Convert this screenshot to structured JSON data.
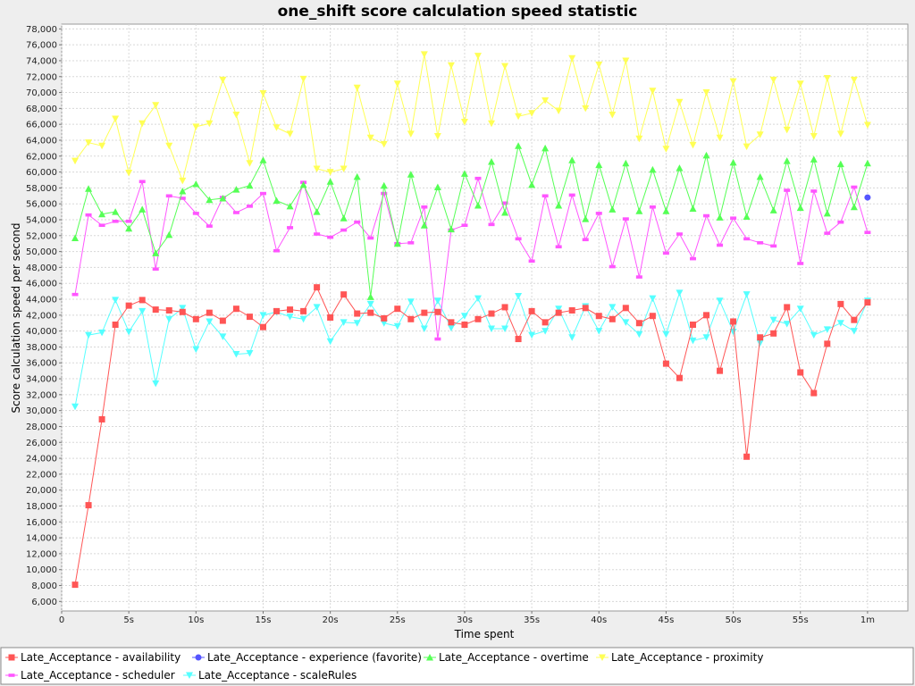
{
  "chart_data": {
    "type": "line",
    "title": "one_shift score calculation speed statistic",
    "xlabel": "Time spent",
    "ylabel": "Score calculation speed per second",
    "xlim": [
      0,
      63
    ],
    "ylim": [
      4800,
      78600
    ],
    "x_ticks": [
      {
        "value": 0,
        "label": "0"
      },
      {
        "value": 5,
        "label": "5s"
      },
      {
        "value": 10,
        "label": "10s"
      },
      {
        "value": 15,
        "label": "15s"
      },
      {
        "value": 20,
        "label": "20s"
      },
      {
        "value": 25,
        "label": "25s"
      },
      {
        "value": 30,
        "label": "30s"
      },
      {
        "value": 35,
        "label": "35s"
      },
      {
        "value": 40,
        "label": "40s"
      },
      {
        "value": 45,
        "label": "45s"
      },
      {
        "value": 50,
        "label": "50s"
      },
      {
        "value": 55,
        "label": "55s"
      },
      {
        "value": 60,
        "label": "1m"
      }
    ],
    "y_ticks": [
      6000,
      8000,
      10000,
      12000,
      14000,
      16000,
      18000,
      20000,
      22000,
      24000,
      26000,
      28000,
      30000,
      32000,
      34000,
      36000,
      38000,
      40000,
      42000,
      44000,
      46000,
      48000,
      50000,
      52000,
      54000,
      56000,
      58000,
      60000,
      62000,
      64000,
      66000,
      68000,
      70000,
      72000,
      74000,
      76000,
      78000
    ],
    "y_tick_labels": [
      "6,000",
      "8,000",
      "10,000",
      "12,000",
      "14,000",
      "16,000",
      "18,000",
      "20,000",
      "22,000",
      "24,000",
      "26,000",
      "28,000",
      "30,000",
      "32,000",
      "34,000",
      "36,000",
      "38,000",
      "40,000",
      "42,000",
      "44,000",
      "46,000",
      "48,000",
      "50,000",
      "52,000",
      "54,000",
      "56,000",
      "58,000",
      "60,000",
      "62,000",
      "64,000",
      "66,000",
      "68,000",
      "70,000",
      "72,000",
      "74,000",
      "76,000",
      "78,000"
    ],
    "grid": true,
    "legend_position": "bottom",
    "series": [
      {
        "name": "Late_Acceptance - availability",
        "color": "#ff5555",
        "marker": "square",
        "x": [
          1,
          2,
          3,
          4,
          5,
          6,
          7,
          8,
          9,
          10,
          11,
          12,
          13,
          14,
          15,
          16,
          17,
          18,
          19,
          20,
          21,
          22,
          23,
          24,
          25,
          26,
          27,
          28,
          29,
          30,
          31,
          32,
          33,
          34,
          35,
          36,
          37,
          38,
          39,
          40,
          41,
          42,
          43,
          44,
          45,
          46,
          47,
          48,
          49,
          50,
          51,
          52,
          53,
          54,
          55,
          56,
          57,
          58,
          59,
          60
        ],
        "values": [
          8100,
          18100,
          28900,
          40800,
          43200,
          43900,
          42700,
          42600,
          42400,
          41500,
          42300,
          41300,
          42800,
          41800,
          40500,
          42500,
          42700,
          42500,
          45500,
          41700,
          44600,
          42200,
          42300,
          41600,
          42800,
          41500,
          42300,
          42400,
          41100,
          40800,
          41500,
          42200,
          43000,
          39000,
          42500,
          41100,
          42300,
          42600,
          42900,
          41900,
          41500,
          42900,
          41000,
          41900,
          35900,
          34100,
          40800,
          42000,
          35000,
          41200,
          24200,
          39200,
          39700,
          43000,
          34800,
          32200,
          38400,
          43400,
          41400,
          43600
        ]
      },
      {
        "name": "Late_Acceptance - experience (favorite)",
        "color": "#5555ff",
        "marker": "circle",
        "x": [
          60
        ],
        "values": [
          56800
        ]
      },
      {
        "name": "Late_Acceptance - overtime",
        "color": "#55ff55",
        "marker": "triangle-up",
        "x": [
          1,
          2,
          3,
          4,
          5,
          6,
          7,
          8,
          9,
          10,
          11,
          12,
          13,
          14,
          15,
          16,
          17,
          18,
          19,
          20,
          21,
          22,
          23,
          24,
          25,
          26,
          27,
          28,
          29,
          30,
          31,
          32,
          33,
          34,
          35,
          36,
          37,
          38,
          39,
          40,
          41,
          42,
          43,
          44,
          45,
          46,
          47,
          48,
          49,
          50,
          51,
          52,
          53,
          54,
          55,
          56,
          57,
          58,
          59,
          60
        ],
        "values": [
          51700,
          57900,
          54700,
          55000,
          52900,
          55300,
          49800,
          52100,
          57600,
          58500,
          56500,
          56700,
          57800,
          58300,
          61500,
          56400,
          55700,
          58400,
          55000,
          58800,
          54200,
          59400,
          44300,
          58300,
          51000,
          59700,
          53300,
          58100,
          52800,
          59800,
          55800,
          61300,
          54900,
          63300,
          58400,
          63000,
          55800,
          61500,
          54100,
          60900,
          55300,
          61100,
          55100,
          60300,
          55100,
          60500,
          55400,
          62100,
          54300,
          61200,
          54400,
          59400,
          55200,
          61400,
          55500,
          61600,
          54800,
          61000,
          55600,
          61100
        ]
      },
      {
        "name": "Late_Acceptance - proximity",
        "color": "#ffff55",
        "marker": "triangle-down",
        "x": [
          1,
          2,
          3,
          4,
          5,
          6,
          7,
          8,
          9,
          10,
          11,
          12,
          13,
          14,
          15,
          16,
          17,
          18,
          19,
          20,
          21,
          22,
          23,
          24,
          25,
          26,
          27,
          28,
          29,
          30,
          31,
          32,
          33,
          34,
          35,
          36,
          37,
          38,
          39,
          40,
          41,
          42,
          43,
          44,
          45,
          46,
          47,
          48,
          49,
          50,
          51,
          52,
          53,
          54,
          55,
          56,
          57,
          58,
          59,
          60
        ],
        "values": [
          61400,
          63700,
          63300,
          66700,
          59900,
          66100,
          68400,
          63300,
          58900,
          65700,
          66100,
          71600,
          67200,
          61100,
          69900,
          65600,
          64800,
          71700,
          60400,
          60000,
          60400,
          70600,
          64300,
          63500,
          71100,
          64800,
          74800,
          64500,
          73400,
          66300,
          74600,
          66100,
          73300,
          67000,
          67400,
          69000,
          67700,
          74300,
          68000,
          73500,
          67200,
          74000,
          64200,
          70200,
          62900,
          68800,
          63400,
          70000,
          64300,
          71400,
          63200,
          64700,
          71600,
          65300,
          71100,
          64500,
          71800,
          64800,
          71600,
          65900
        ]
      },
      {
        "name": "Late_Acceptance - scheduler",
        "color": "#ff55ff",
        "marker": "dash",
        "x": [
          1,
          2,
          3,
          4,
          5,
          6,
          7,
          8,
          9,
          10,
          11,
          12,
          13,
          14,
          15,
          16,
          17,
          18,
          19,
          20,
          21,
          22,
          23,
          24,
          25,
          26,
          27,
          28,
          29,
          30,
          31,
          32,
          33,
          34,
          35,
          36,
          37,
          38,
          39,
          40,
          41,
          42,
          43,
          44,
          45,
          46,
          47,
          48,
          49,
          50,
          51,
          52,
          53,
          54,
          55,
          56,
          57,
          58,
          59,
          60
        ],
        "values": [
          44600,
          54600,
          53300,
          53800,
          53800,
          58800,
          47800,
          57000,
          56700,
          54800,
          53200,
          56800,
          54900,
          55700,
          57300,
          50100,
          53000,
          58700,
          52200,
          51800,
          52700,
          53700,
          51700,
          57300,
          51000,
          51100,
          55600,
          39000,
          52700,
          53300,
          59200,
          53400,
          56100,
          51600,
          48800,
          57000,
          50600,
          57100,
          51500,
          54800,
          48100,
          54100,
          46800,
          55600,
          49800,
          52200,
          49100,
          54500,
          50800,
          54200,
          51600,
          51100,
          50700,
          57700,
          48500,
          57600,
          52300,
          53700,
          58100,
          52400
        ]
      },
      {
        "name": "Late_Acceptance - scaleRules",
        "color": "#55ffff",
        "marker": "triangle-down",
        "x": [
          1,
          2,
          3,
          4,
          5,
          6,
          7,
          8,
          9,
          10,
          11,
          12,
          13,
          14,
          15,
          16,
          17,
          18,
          19,
          20,
          21,
          22,
          23,
          24,
          25,
          26,
          27,
          28,
          29,
          30,
          31,
          32,
          33,
          34,
          35,
          36,
          37,
          38,
          39,
          40,
          41,
          42,
          43,
          44,
          45,
          46,
          47,
          48,
          49,
          50,
          51,
          52,
          53,
          54,
          55,
          56,
          57,
          58,
          59,
          60
        ],
        "values": [
          30500,
          39500,
          39800,
          43900,
          39900,
          42500,
          33400,
          41500,
          42900,
          37700,
          41200,
          39300,
          37100,
          37200,
          42000,
          42400,
          41800,
          41500,
          43000,
          38700,
          41100,
          41000,
          43400,
          41000,
          40600,
          43700,
          40300,
          43800,
          40400,
          41900,
          44100,
          40300,
          40300,
          44400,
          39500,
          40000,
          42800,
          39200,
          43100,
          40000,
          43000,
          41100,
          39600,
          44100,
          39600,
          44800,
          38800,
          39200,
          43800,
          39900,
          44600,
          38500,
          41400,
          40900,
          42800,
          39500,
          40200,
          41000,
          40000,
          43800
        ]
      }
    ]
  }
}
